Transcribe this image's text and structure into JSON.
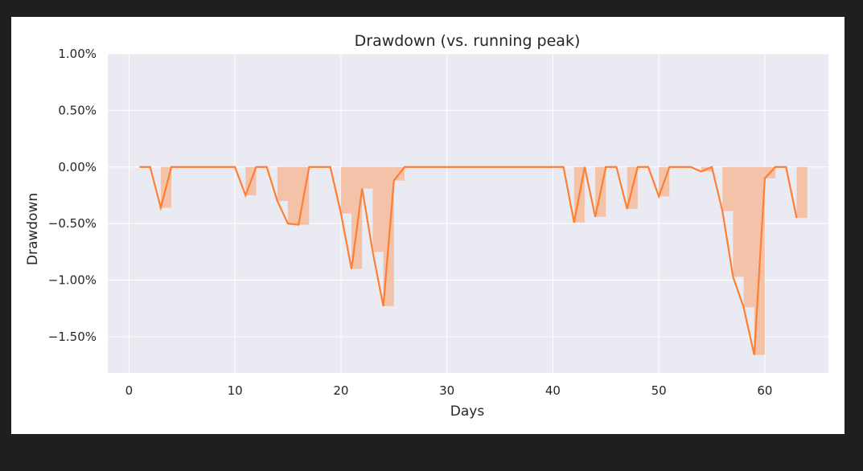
{
  "chart_data": {
    "type": "line",
    "title": "Drawdown (vs. running peak)",
    "xlabel": "Days",
    "ylabel": "Drawdown",
    "xlim": [
      -2,
      66
    ],
    "ylim": [
      -1.82,
      1.0
    ],
    "x_ticks": [
      0,
      10,
      20,
      30,
      40,
      50,
      60
    ],
    "x_tick_labels": [
      "0",
      "10",
      "20",
      "30",
      "40",
      "50",
      "60"
    ],
    "y_ticks": [
      1.0,
      0.5,
      0.0,
      -0.5,
      -1.0,
      -1.5
    ],
    "y_tick_labels": [
      "1.00%",
      "0.50%",
      "0.00%",
      "−0.50%",
      "−1.00%",
      "−1.50%"
    ],
    "grid": true,
    "colors": {
      "line": "#ff7f32",
      "fill": "#f4c2a8",
      "plot_bg": "#eaeaf2",
      "grid": "#ffffff",
      "frame": "#1f1f1f"
    },
    "series": [
      {
        "x": [
          1,
          2,
          3,
          4,
          5,
          6,
          7,
          8,
          9,
          10,
          11,
          12,
          13,
          14,
          15,
          16,
          17,
          18,
          19,
          20,
          21,
          22,
          23,
          24,
          25,
          26,
          27,
          28,
          29,
          30,
          31,
          32,
          33,
          34,
          35,
          36,
          37,
          38,
          39,
          40,
          41,
          42,
          43,
          44,
          45,
          46,
          47,
          48,
          49,
          50,
          51,
          52,
          53,
          54,
          55,
          56,
          57,
          58,
          59,
          60,
          61,
          62,
          63
        ],
        "y": [
          0,
          0,
          -0.36,
          0,
          0,
          0,
          0,
          0,
          0,
          0,
          -0.25,
          0,
          0,
          -0.3,
          -0.5,
          -0.51,
          0,
          0,
          0,
          -0.41,
          -0.9,
          -0.19,
          -0.75,
          -1.23,
          -0.12,
          0,
          0,
          0,
          0,
          0,
          0,
          0,
          0,
          0,
          0,
          0,
          0,
          0,
          0,
          0,
          0,
          -0.49,
          0,
          -0.44,
          0,
          0,
          -0.37,
          0,
          0,
          -0.26,
          0,
          0,
          0,
          -0.04,
          0,
          -0.39,
          -0.97,
          -1.24,
          -1.66,
          -0.1,
          0,
          0,
          -0.45
        ]
      }
    ]
  }
}
